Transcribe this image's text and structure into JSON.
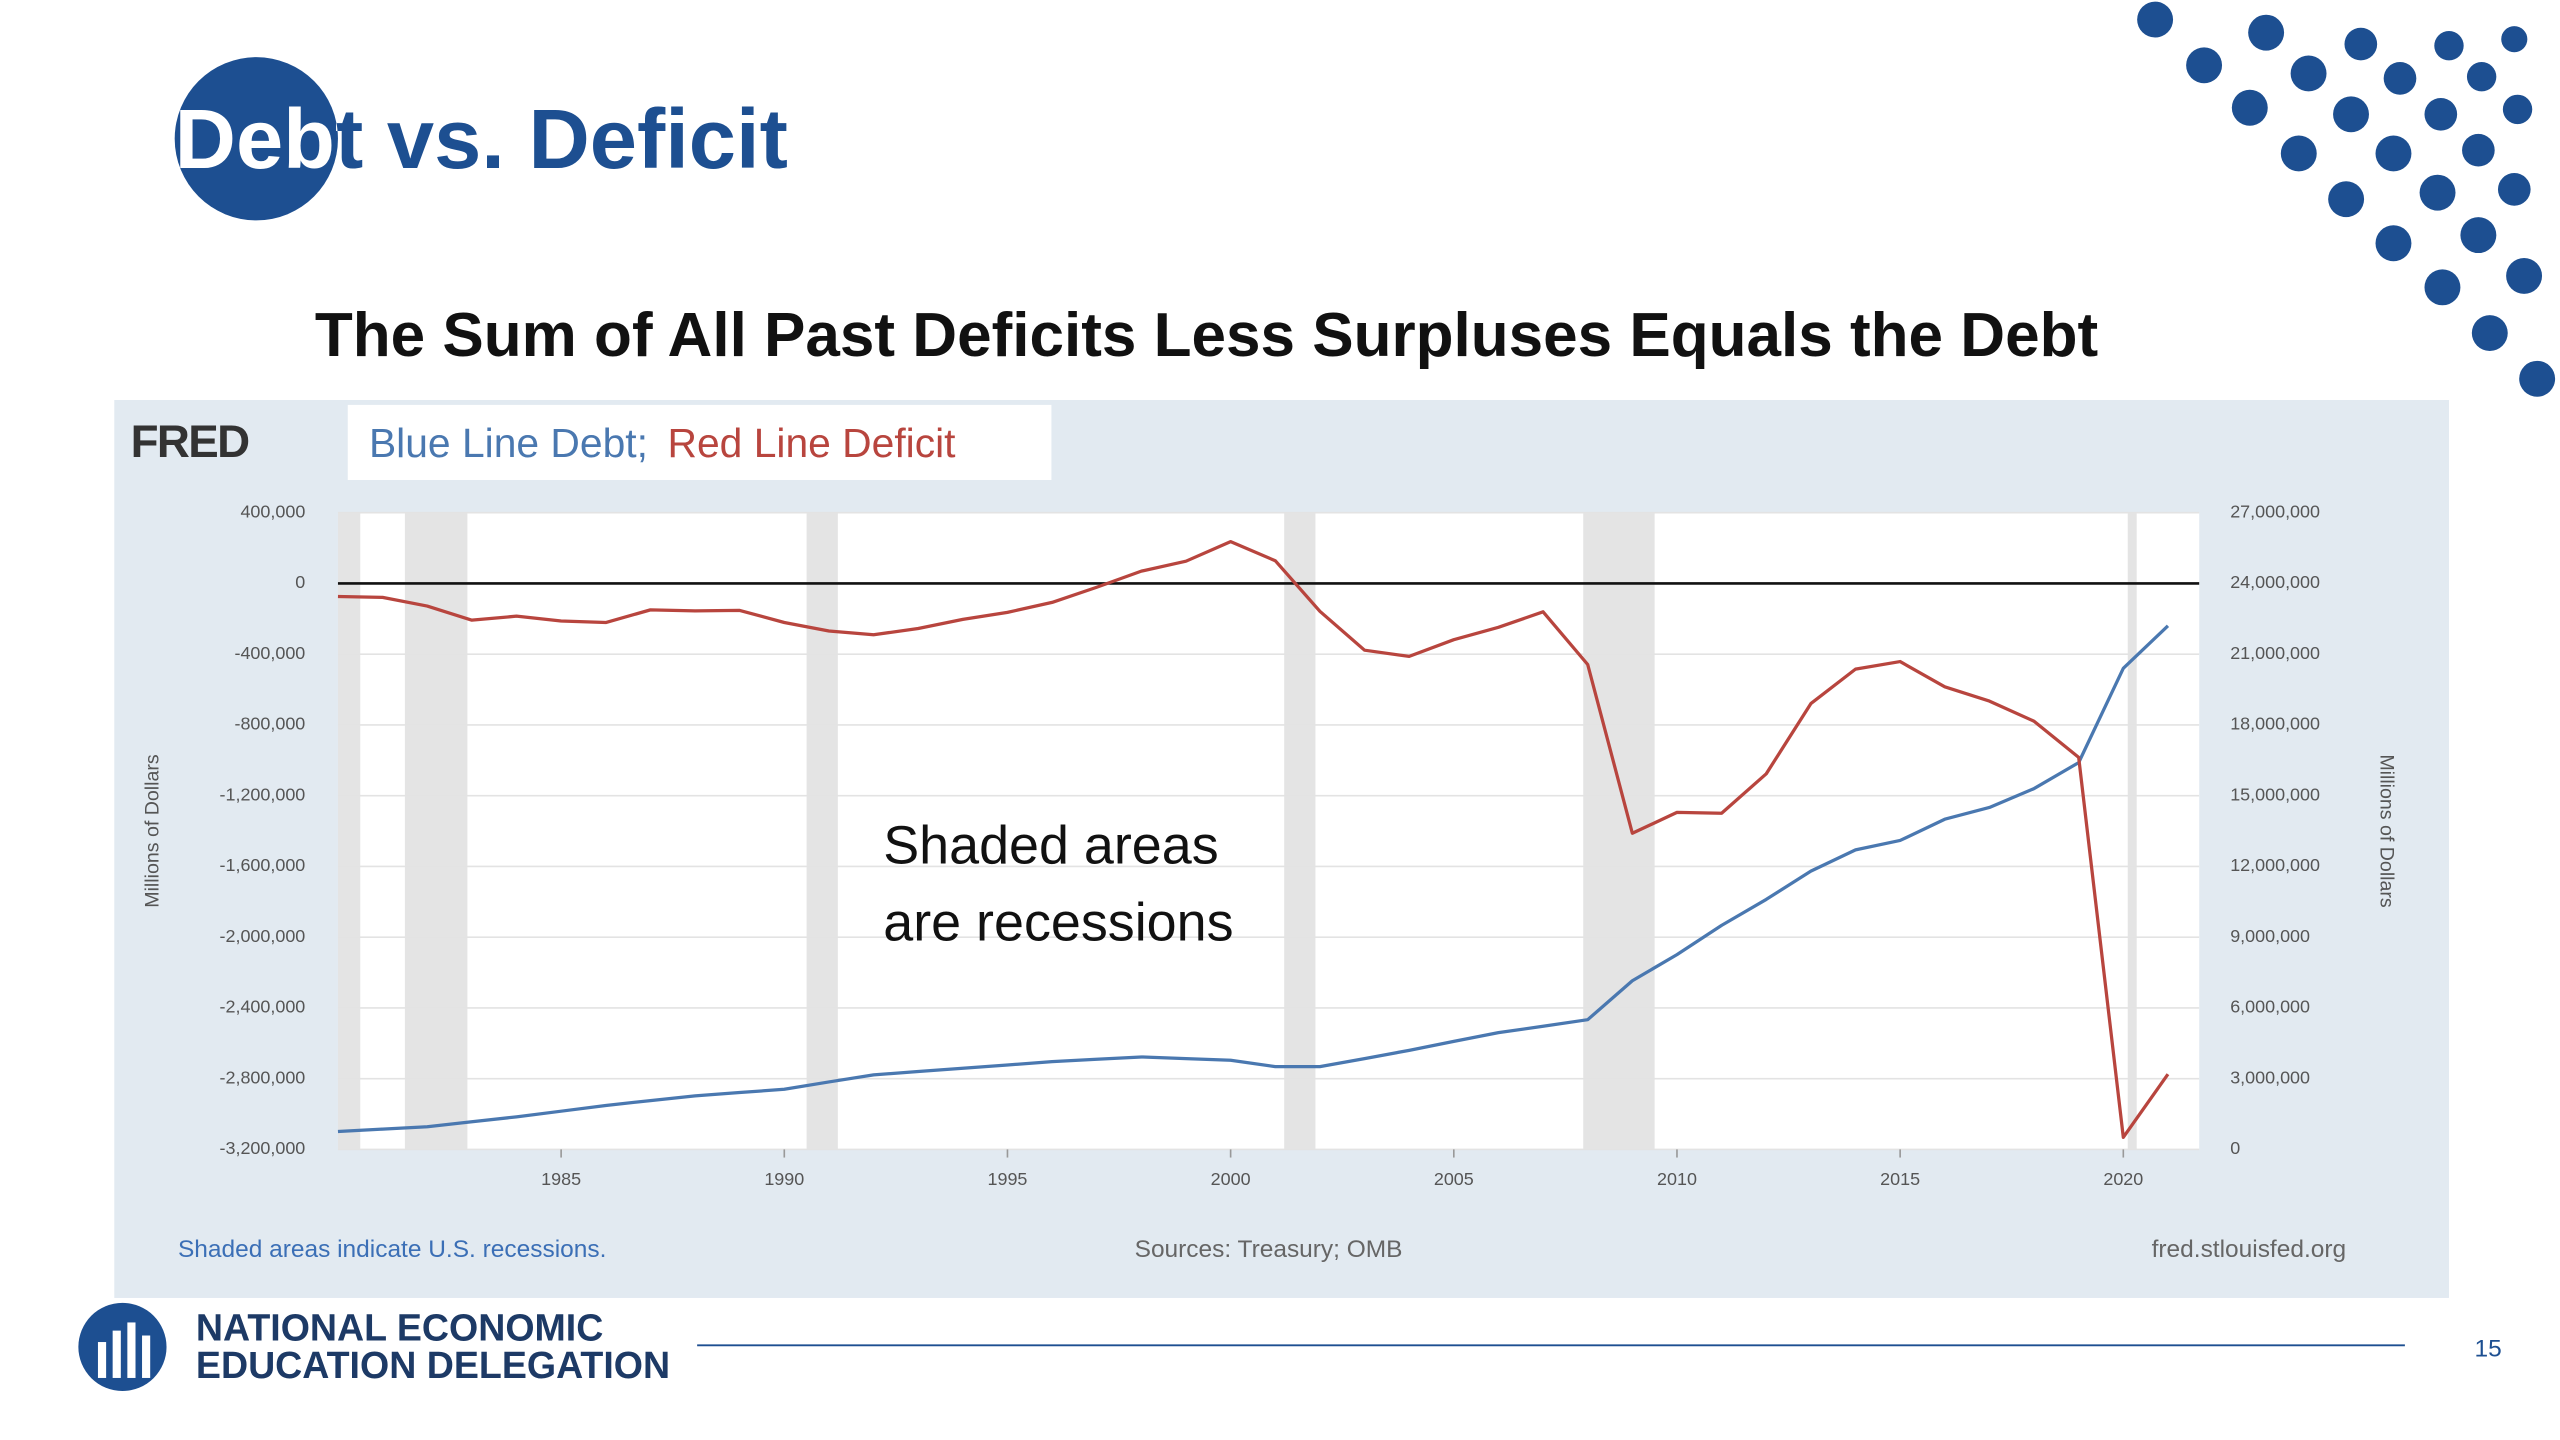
{
  "title": "Debt vs. Deficit",
  "subtitle": "The Sum of All Past Deficits Less Surpluses Equals the Debt",
  "fred_logo": "FRED",
  "footer_left": "Shaded areas indicate U.S. recessions.",
  "footer_center": "Sources: Treasury; OMB",
  "footer_right": "fred.stlouisfed.org",
  "org_name": [
    "NATIONAL ECONOMIC",
    "EDUCATION DELEGATION"
  ],
  "page_number": "15",
  "chart_data": {
    "type": "line",
    "x": [
      1980,
      1981,
      1982,
      1983,
      1984,
      1985,
      1986,
      1987,
      1988,
      1989,
      1990,
      1991,
      1992,
      1993,
      1994,
      1995,
      1996,
      1997,
      1998,
      1999,
      2000,
      2001,
      2002,
      2003,
      2004,
      2005,
      2006,
      2007,
      2008,
      2009,
      2010,
      2011,
      2012,
      2013,
      2014,
      2015,
      2016,
      2017,
      2018,
      2019,
      2020,
      2021
    ],
    "series": [
      {
        "name": "Blue Line Debt;",
        "color": "#4a78b0",
        "axis": "y2",
        "values": [
          760000,
          860000,
          960000,
          1170000,
          1380000,
          1620000,
          1860000,
          2070000,
          2270000,
          2410000,
          2550000,
          2860000,
          3160000,
          3300000,
          3440000,
          3580000,
          3720000,
          3820000,
          3920000,
          3850000,
          3780000,
          3510000,
          3510000,
          3850000,
          4200000,
          4580000,
          4950000,
          5220000,
          5500000,
          7150000,
          8260000,
          9500000,
          10600000,
          11800000,
          12700000,
          13100000,
          14000000,
          14500000,
          15300000,
          16400000,
          20400000,
          22200000
        ]
      },
      {
        "name": "Red Line Deficit",
        "color": "#b8453e",
        "values": [
          -73830,
          -78968,
          -127977,
          -207802,
          -185367,
          -212308,
          -221227,
          -149730,
          -155178,
          -152639,
          -221036,
          -269238,
          -290321,
          -255051,
          -203186,
          -163952,
          -107431,
          -21884,
          69270,
          125610,
          236241,
          128236,
          -157758,
          -377585,
          -412727,
          -318346,
          -248181,
          -160701,
          -458553,
          -1412688,
          -1294373,
          -1299593,
          -1076573,
          -679502,
          -484793,
          -441960,
          -584651,
          -665446,
          -779137,
          -983592,
          -3131917,
          -2775000
        ]
      }
    ],
    "xlim": [
      1980,
      2021.7
    ],
    "xticks": [
      1985,
      1990,
      1995,
      2000,
      2005,
      2010,
      2015,
      2020
    ],
    "ylim": [
      -3200000,
      400000
    ],
    "yticks": [
      {
        "value": 400000,
        "label": "400,000"
      },
      0,
      {
        "value": -400000,
        "label": "-400,000"
      },
      {
        "value": -800000,
        "label": "-800,000"
      },
      {
        "value": -1200000,
        "label": "-1,200,000"
      },
      {
        "value": -1600000,
        "label": "-1,600,000"
      },
      {
        "value": -2000000,
        "label": "-2,000,000"
      },
      {
        "value": -2400000,
        "label": "-2,400,000"
      },
      {
        "value": -2800000,
        "label": "-2,800,000"
      },
      {
        "value": -3200000,
        "label": "-3,200,000"
      }
    ],
    "y2lim": [
      0,
      27000000
    ],
    "y2ticks": [
      {
        "value": 27000000,
        "label": "27,000,000"
      },
      {
        "value": 24000000,
        "label": "24,000,000"
      },
      {
        "value": 21000000,
        "label": "21,000,000"
      },
      {
        "value": 18000000,
        "label": "18,000,000"
      },
      {
        "value": 15000000,
        "label": "15,000,000"
      },
      {
        "value": 12000000,
        "label": "12,000,000"
      },
      {
        "value": 9000000,
        "label": "9,000,000"
      },
      {
        "value": 6000000,
        "label": "6,000,000"
      },
      {
        "value": 3000000,
        "label": "3,000,000"
      },
      0
    ],
    "y_label": "Millions of Dollars",
    "y2_label": "Millions of Dollars",
    "recessions": [
      [
        1980,
        1980.5
      ],
      [
        1981.5,
        1982.9
      ],
      [
        1990.5,
        1991.2
      ],
      [
        2001.2,
        2001.9
      ],
      [
        2007.9,
        2009.5
      ],
      [
        2020.1,
        2020.3
      ]
    ],
    "annotation": [
      "Shaded areas",
      "are recessions"
    ],
    "grid": true
  }
}
